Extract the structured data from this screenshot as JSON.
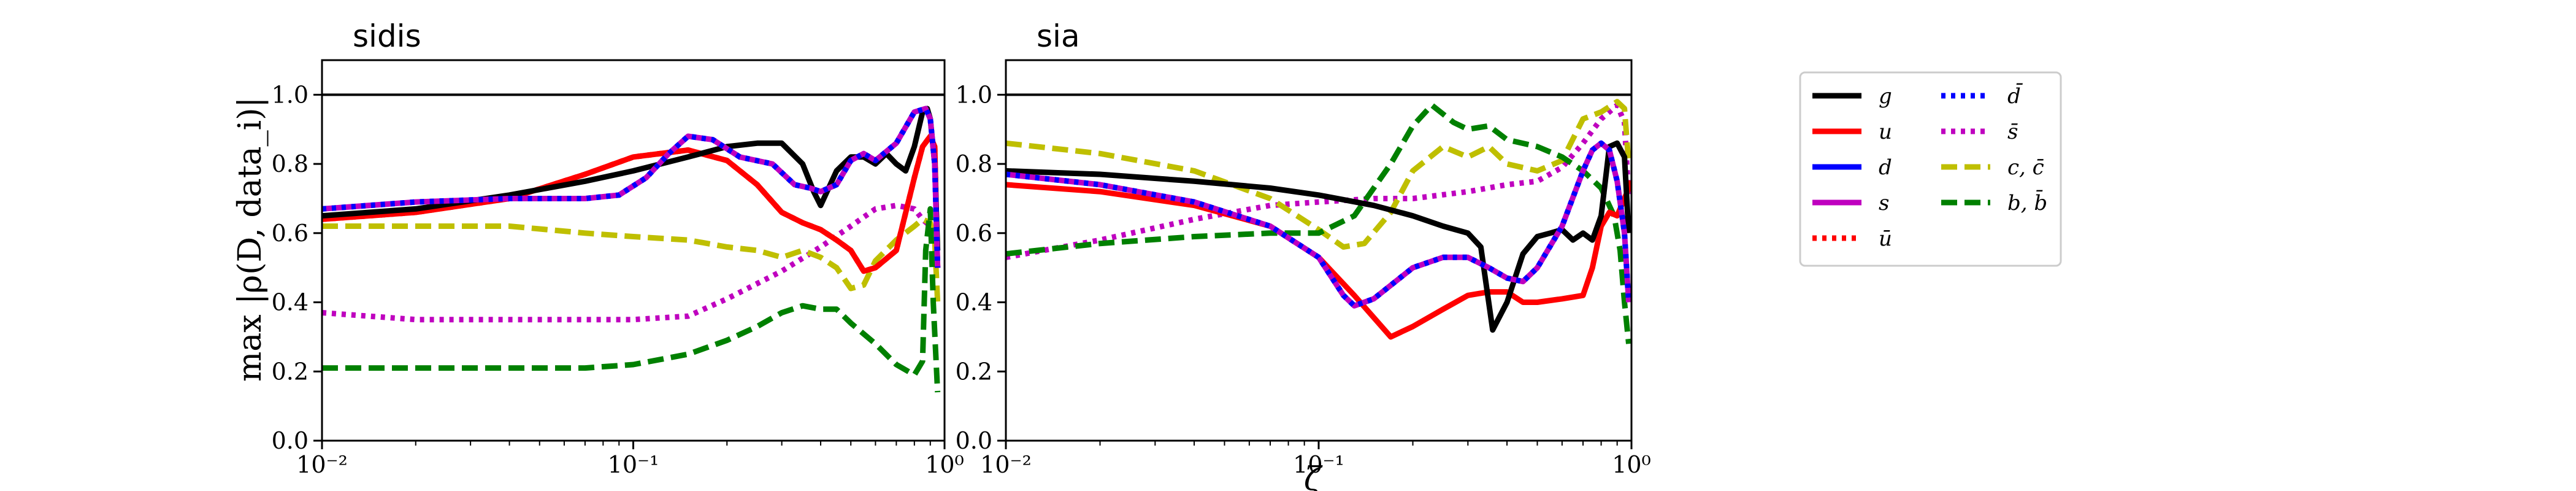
{
  "figure": {
    "ylabel": "max |ρ(D, data_i)|",
    "xlabel": "ζ"
  },
  "legend": {
    "placement": "right",
    "entries": [
      {
        "key": "g",
        "label": "g",
        "color": "#000000",
        "style": "solid"
      },
      {
        "key": "u",
        "label": "u",
        "color": "#ff0000",
        "style": "solid"
      },
      {
        "key": "d",
        "label": "d",
        "color": "#0000ff",
        "style": "solid"
      },
      {
        "key": "s",
        "label": "s",
        "color": "#bf00bf",
        "style": "solid"
      },
      {
        "key": "ubar",
        "label": "ū",
        "color": "#ff0000",
        "style": "dotted"
      },
      {
        "key": "dbar",
        "label": "d̄",
        "color": "#0000ff",
        "style": "dotted"
      },
      {
        "key": "sbar",
        "label": "s̄",
        "color": "#bf00bf",
        "style": "dotted"
      },
      {
        "key": "c",
        "label": "c, c̄",
        "color": "#bfbf00",
        "style": "dashed"
      },
      {
        "key": "b",
        "label": "b, b̄",
        "color": "#008000",
        "style": "dashed"
      }
    ]
  },
  "chart_data": [
    {
      "type": "line",
      "title": "sidis",
      "xscale": "log",
      "xlim": [
        0.01,
        1
      ],
      "ylim": [
        0.0,
        1.1
      ],
      "xticks": [
        {
          "v": 0.01,
          "label": "10⁻²"
        },
        {
          "v": 0.1,
          "label": "10⁻¹"
        },
        {
          "v": 1,
          "label": "10⁰"
        }
      ],
      "yticks": [
        {
          "v": 0.0,
          "label": "0.0"
        },
        {
          "v": 0.2,
          "label": "0.2"
        },
        {
          "v": 0.4,
          "label": "0.4"
        },
        {
          "v": 0.6,
          "label": "0.6"
        },
        {
          "v": 0.8,
          "label": "0.8"
        },
        {
          "v": 1.0,
          "label": "1.0"
        }
      ],
      "hline": 1.0,
      "series": [
        {
          "key": "sbar",
          "x": [
            0.01,
            0.02,
            0.04,
            0.07,
            0.1,
            0.15,
            0.2,
            0.3,
            0.4,
            0.5,
            0.6,
            0.7,
            0.8,
            0.85,
            0.9,
            0.93,
            0.95
          ],
          "y": [
            0.37,
            0.35,
            0.35,
            0.35,
            0.35,
            0.36,
            0.41,
            0.49,
            0.56,
            0.62,
            0.67,
            0.68,
            0.67,
            0.64,
            0.62,
            0.58,
            0.55
          ]
        },
        {
          "key": "c",
          "x": [
            0.01,
            0.02,
            0.04,
            0.07,
            0.1,
            0.15,
            0.2,
            0.25,
            0.3,
            0.35,
            0.4,
            0.45,
            0.5,
            0.55,
            0.6,
            0.7,
            0.8,
            0.85,
            0.9,
            0.93,
            0.95
          ],
          "y": [
            0.62,
            0.62,
            0.62,
            0.6,
            0.59,
            0.58,
            0.56,
            0.55,
            0.53,
            0.55,
            0.53,
            0.5,
            0.44,
            0.45,
            0.52,
            0.58,
            0.62,
            0.64,
            0.63,
            0.58,
            0.4
          ]
        },
        {
          "key": "b",
          "x": [
            0.01,
            0.02,
            0.04,
            0.07,
            0.1,
            0.15,
            0.2,
            0.25,
            0.3,
            0.35,
            0.4,
            0.45,
            0.5,
            0.6,
            0.7,
            0.8,
            0.85,
            0.87,
            0.9,
            0.92,
            0.95
          ],
          "y": [
            0.21,
            0.21,
            0.21,
            0.21,
            0.22,
            0.25,
            0.29,
            0.33,
            0.37,
            0.39,
            0.38,
            0.38,
            0.34,
            0.28,
            0.22,
            0.19,
            0.23,
            0.55,
            0.67,
            0.4,
            0.14
          ]
        },
        {
          "key": "ubar",
          "x": [
            0.01,
            0.02,
            0.04,
            0.07,
            0.1,
            0.15,
            0.2,
            0.25,
            0.3,
            0.35,
            0.4,
            0.45,
            0.5,
            0.55,
            0.6,
            0.7,
            0.8,
            0.85,
            0.9,
            0.93,
            0.95
          ],
          "y": [
            0.64,
            0.66,
            0.7,
            0.77,
            0.82,
            0.84,
            0.81,
            0.74,
            0.66,
            0.63,
            0.61,
            0.58,
            0.55,
            0.49,
            0.5,
            0.55,
            0.76,
            0.85,
            0.88,
            0.85,
            0.5
          ]
        },
        {
          "key": "u",
          "x": [
            0.01,
            0.02,
            0.04,
            0.07,
            0.1,
            0.15,
            0.2,
            0.25,
            0.3,
            0.35,
            0.4,
            0.45,
            0.5,
            0.55,
            0.6,
            0.7,
            0.8,
            0.85,
            0.9,
            0.93,
            0.95
          ],
          "y": [
            0.64,
            0.66,
            0.7,
            0.77,
            0.82,
            0.84,
            0.81,
            0.74,
            0.66,
            0.63,
            0.61,
            0.58,
            0.55,
            0.49,
            0.5,
            0.55,
            0.76,
            0.85,
            0.88,
            0.85,
            0.5
          ]
        },
        {
          "key": "g",
          "x": [
            0.01,
            0.02,
            0.04,
            0.07,
            0.1,
            0.15,
            0.2,
            0.25,
            0.3,
            0.35,
            0.38,
            0.4,
            0.45,
            0.5,
            0.55,
            0.6,
            0.65,
            0.7,
            0.75,
            0.8,
            0.85,
            0.88,
            0.9,
            0.93,
            0.95
          ],
          "y": [
            0.65,
            0.67,
            0.71,
            0.75,
            0.78,
            0.82,
            0.85,
            0.86,
            0.86,
            0.8,
            0.72,
            0.68,
            0.78,
            0.82,
            0.82,
            0.8,
            0.83,
            0.8,
            0.78,
            0.85,
            0.95,
            0.96,
            0.93,
            0.8,
            0.55
          ]
        },
        {
          "key": "s",
          "x": [
            0.01,
            0.02,
            0.04,
            0.07,
            0.09,
            0.11,
            0.13,
            0.15,
            0.18,
            0.22,
            0.28,
            0.33,
            0.37,
            0.4,
            0.45,
            0.5,
            0.55,
            0.6,
            0.7,
            0.8,
            0.87,
            0.9,
            0.93,
            0.95
          ],
          "y": [
            0.67,
            0.69,
            0.7,
            0.7,
            0.71,
            0.76,
            0.83,
            0.88,
            0.87,
            0.82,
            0.8,
            0.74,
            0.73,
            0.72,
            0.74,
            0.81,
            0.83,
            0.81,
            0.86,
            0.95,
            0.96,
            0.93,
            0.8,
            0.5
          ]
        },
        {
          "key": "dbar",
          "x": [
            0.01,
            0.02,
            0.04,
            0.07,
            0.09,
            0.11,
            0.13,
            0.15,
            0.18,
            0.22,
            0.28,
            0.33,
            0.37,
            0.4,
            0.45,
            0.5,
            0.55,
            0.6,
            0.7,
            0.8,
            0.87,
            0.9,
            0.93,
            0.95
          ],
          "y": [
            0.67,
            0.69,
            0.7,
            0.7,
            0.71,
            0.76,
            0.83,
            0.88,
            0.87,
            0.82,
            0.8,
            0.74,
            0.73,
            0.72,
            0.74,
            0.81,
            0.83,
            0.81,
            0.86,
            0.95,
            0.96,
            0.93,
            0.8,
            0.5
          ]
        }
      ]
    },
    {
      "type": "line",
      "title": "sia",
      "xscale": "log",
      "xlim": [
        0.01,
        1
      ],
      "ylim": [
        0.0,
        1.1
      ],
      "xticks": [
        {
          "v": 0.01,
          "label": "10⁻²"
        },
        {
          "v": 0.1,
          "label": "10⁻¹"
        },
        {
          "v": 1,
          "label": "10⁰"
        }
      ],
      "yticks": [
        {
          "v": 0.0,
          "label": "0.0"
        },
        {
          "v": 0.2,
          "label": "0.2"
        },
        {
          "v": 0.4,
          "label": "0.4"
        },
        {
          "v": 0.6,
          "label": "0.6"
        },
        {
          "v": 0.8,
          "label": "0.8"
        },
        {
          "v": 1.0,
          "label": "1.0"
        }
      ],
      "hline": 1.0,
      "series": [
        {
          "key": "sbar",
          "x": [
            0.01,
            0.02,
            0.04,
            0.07,
            0.1,
            0.15,
            0.2,
            0.3,
            0.4,
            0.5,
            0.6,
            0.7,
            0.8,
            0.9,
            0.95,
            0.98
          ],
          "y": [
            0.53,
            0.58,
            0.64,
            0.68,
            0.69,
            0.7,
            0.7,
            0.72,
            0.74,
            0.75,
            0.79,
            0.86,
            0.93,
            0.97,
            0.92,
            0.7
          ]
        },
        {
          "key": "c",
          "x": [
            0.01,
            0.02,
            0.04,
            0.07,
            0.1,
            0.12,
            0.14,
            0.17,
            0.2,
            0.25,
            0.3,
            0.35,
            0.4,
            0.5,
            0.6,
            0.7,
            0.8,
            0.9,
            0.95,
            0.98
          ],
          "y": [
            0.86,
            0.83,
            0.78,
            0.7,
            0.61,
            0.56,
            0.57,
            0.66,
            0.78,
            0.85,
            0.82,
            0.85,
            0.8,
            0.78,
            0.81,
            0.93,
            0.95,
            0.98,
            0.96,
            0.8
          ]
        },
        {
          "key": "b",
          "x": [
            0.01,
            0.02,
            0.04,
            0.07,
            0.1,
            0.13,
            0.17,
            0.2,
            0.23,
            0.27,
            0.3,
            0.35,
            0.4,
            0.5,
            0.6,
            0.7,
            0.8,
            0.88,
            0.92,
            0.95,
            0.98
          ],
          "y": [
            0.54,
            0.57,
            0.59,
            0.6,
            0.6,
            0.65,
            0.8,
            0.91,
            0.97,
            0.92,
            0.9,
            0.91,
            0.87,
            0.85,
            0.82,
            0.78,
            0.73,
            0.65,
            0.55,
            0.4,
            0.28
          ]
        },
        {
          "key": "u",
          "x": [
            0.01,
            0.02,
            0.04,
            0.07,
            0.1,
            0.13,
            0.17,
            0.2,
            0.25,
            0.3,
            0.35,
            0.4,
            0.45,
            0.5,
            0.6,
            0.7,
            0.75,
            0.8,
            0.85,
            0.9,
            0.95,
            1.0
          ],
          "y": [
            0.74,
            0.72,
            0.68,
            0.62,
            0.53,
            0.42,
            0.3,
            0.33,
            0.38,
            0.42,
            0.43,
            0.43,
            0.4,
            0.4,
            0.41,
            0.42,
            0.5,
            0.62,
            0.66,
            0.65,
            0.7,
            0.75
          ]
        },
        {
          "key": "g",
          "x": [
            0.01,
            0.02,
            0.04,
            0.07,
            0.1,
            0.15,
            0.2,
            0.25,
            0.3,
            0.33,
            0.36,
            0.4,
            0.45,
            0.5,
            0.55,
            0.6,
            0.65,
            0.7,
            0.75,
            0.8,
            0.85,
            0.9,
            0.95,
            0.98
          ],
          "y": [
            0.78,
            0.77,
            0.75,
            0.73,
            0.71,
            0.68,
            0.65,
            0.62,
            0.6,
            0.56,
            0.32,
            0.4,
            0.54,
            0.59,
            0.6,
            0.61,
            0.58,
            0.6,
            0.58,
            0.65,
            0.85,
            0.86,
            0.82,
            0.6
          ]
        },
        {
          "key": "s",
          "x": [
            0.01,
            0.02,
            0.04,
            0.07,
            0.1,
            0.12,
            0.13,
            0.15,
            0.2,
            0.25,
            0.3,
            0.35,
            0.4,
            0.45,
            0.5,
            0.6,
            0.7,
            0.75,
            0.8,
            0.85,
            0.9,
            0.95,
            0.98
          ],
          "y": [
            0.77,
            0.74,
            0.69,
            0.62,
            0.53,
            0.42,
            0.39,
            0.41,
            0.5,
            0.53,
            0.53,
            0.5,
            0.47,
            0.46,
            0.5,
            0.62,
            0.78,
            0.84,
            0.86,
            0.84,
            0.75,
            0.6,
            0.4
          ]
        },
        {
          "key": "dbar",
          "x": [
            0.01,
            0.02,
            0.04,
            0.07,
            0.1,
            0.12,
            0.13,
            0.15,
            0.2,
            0.25,
            0.3,
            0.35,
            0.4,
            0.45,
            0.5,
            0.6,
            0.7,
            0.75,
            0.8,
            0.85,
            0.9,
            0.95,
            0.98
          ],
          "y": [
            0.77,
            0.74,
            0.69,
            0.62,
            0.53,
            0.42,
            0.39,
            0.41,
            0.5,
            0.53,
            0.53,
            0.5,
            0.47,
            0.46,
            0.5,
            0.62,
            0.78,
            0.84,
            0.86,
            0.84,
            0.75,
            0.6,
            0.4
          ]
        }
      ]
    }
  ]
}
